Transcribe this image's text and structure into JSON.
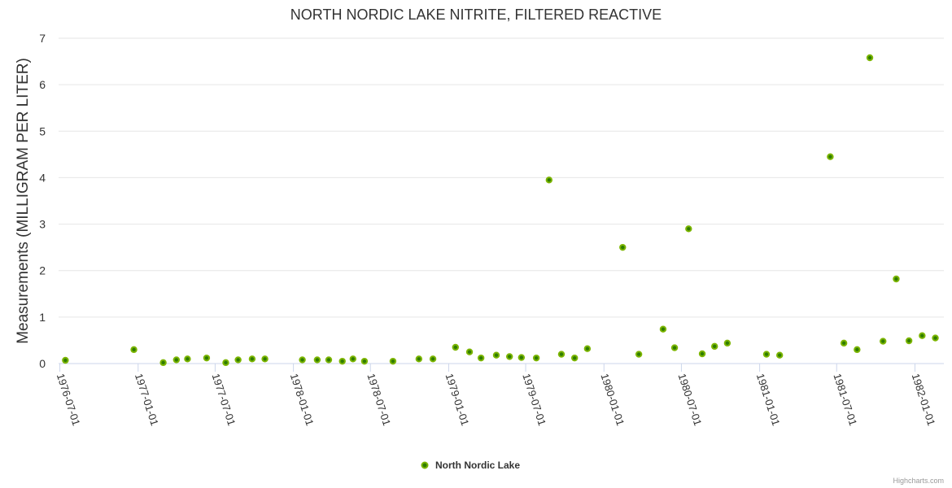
{
  "chart_data": {
    "type": "scatter",
    "title": "NORTH NORDIC LAKE NITRITE, FILTERED REACTIVE",
    "xlabel": "",
    "ylabel": "Measurements (MILLIGRAM PER LITER)",
    "xlim": [
      "1976-06-28",
      "1982-03-10"
    ],
    "ylim": [
      0,
      7
    ],
    "yticks": [
      "0",
      "1",
      "2",
      "3",
      "4",
      "5",
      "6",
      "7"
    ],
    "xticks": [
      "1976-07-01",
      "1977-01-01",
      "1977-07-01",
      "1978-01-01",
      "1978-07-01",
      "1979-01-01",
      "1979-07-01",
      "1980-01-01",
      "1980-07-01",
      "1981-01-01",
      "1981-07-01",
      "1982-01-01"
    ],
    "grid": true,
    "legend_position": "bottom-center",
    "series": [
      {
        "name": "North Nordic Lake",
        "color": "#7cb500",
        "points": [
          [
            "1976-07-14",
            0.07
          ],
          [
            "1976-12-22",
            0.3
          ],
          [
            "1977-03-01",
            0.02
          ],
          [
            "1977-04-01",
            0.08
          ],
          [
            "1977-04-27",
            0.1
          ],
          [
            "1977-06-11",
            0.12
          ],
          [
            "1977-07-26",
            0.02
          ],
          [
            "1977-08-24",
            0.08
          ],
          [
            "1977-09-26",
            0.1
          ],
          [
            "1977-10-26",
            0.1
          ],
          [
            "1978-01-22",
            0.08
          ],
          [
            "1978-02-26",
            0.08
          ],
          [
            "1978-03-25",
            0.08
          ],
          [
            "1978-04-26",
            0.05
          ],
          [
            "1978-05-21",
            0.1
          ],
          [
            "1978-06-17",
            0.05
          ],
          [
            "1978-08-23",
            0.05
          ],
          [
            "1978-10-23",
            0.1
          ],
          [
            "1978-11-25",
            0.1
          ],
          [
            "1979-01-17",
            0.35
          ],
          [
            "1979-02-19",
            0.25
          ],
          [
            "1979-03-18",
            0.12
          ],
          [
            "1979-04-23",
            0.18
          ],
          [
            "1979-05-24",
            0.15
          ],
          [
            "1979-06-21",
            0.13
          ],
          [
            "1979-07-26",
            0.12
          ],
          [
            "1979-08-25",
            3.95
          ],
          [
            "1979-09-23",
            0.2
          ],
          [
            "1979-10-24",
            0.12
          ],
          [
            "1979-11-23",
            0.32
          ],
          [
            "1980-02-14",
            2.5
          ],
          [
            "1980-03-23",
            0.2
          ],
          [
            "1980-05-19",
            0.74
          ],
          [
            "1980-06-15",
            0.34
          ],
          [
            "1980-07-18",
            2.9
          ],
          [
            "1980-08-19",
            0.21
          ],
          [
            "1980-09-17",
            0.37
          ],
          [
            "1980-10-17",
            0.44
          ],
          [
            "1981-01-17",
            0.2
          ],
          [
            "1981-02-17",
            0.18
          ],
          [
            "1981-06-16",
            4.45
          ],
          [
            "1981-07-18",
            0.44
          ],
          [
            "1981-08-18",
            0.3
          ],
          [
            "1981-09-17",
            6.58
          ],
          [
            "1981-10-18",
            0.48
          ],
          [
            "1981-11-18",
            1.82
          ],
          [
            "1981-12-18",
            0.49
          ],
          [
            "1982-01-18",
            0.6
          ],
          [
            "1982-02-18",
            0.55
          ]
        ]
      }
    ]
  },
  "credits": "Highcharts.com"
}
